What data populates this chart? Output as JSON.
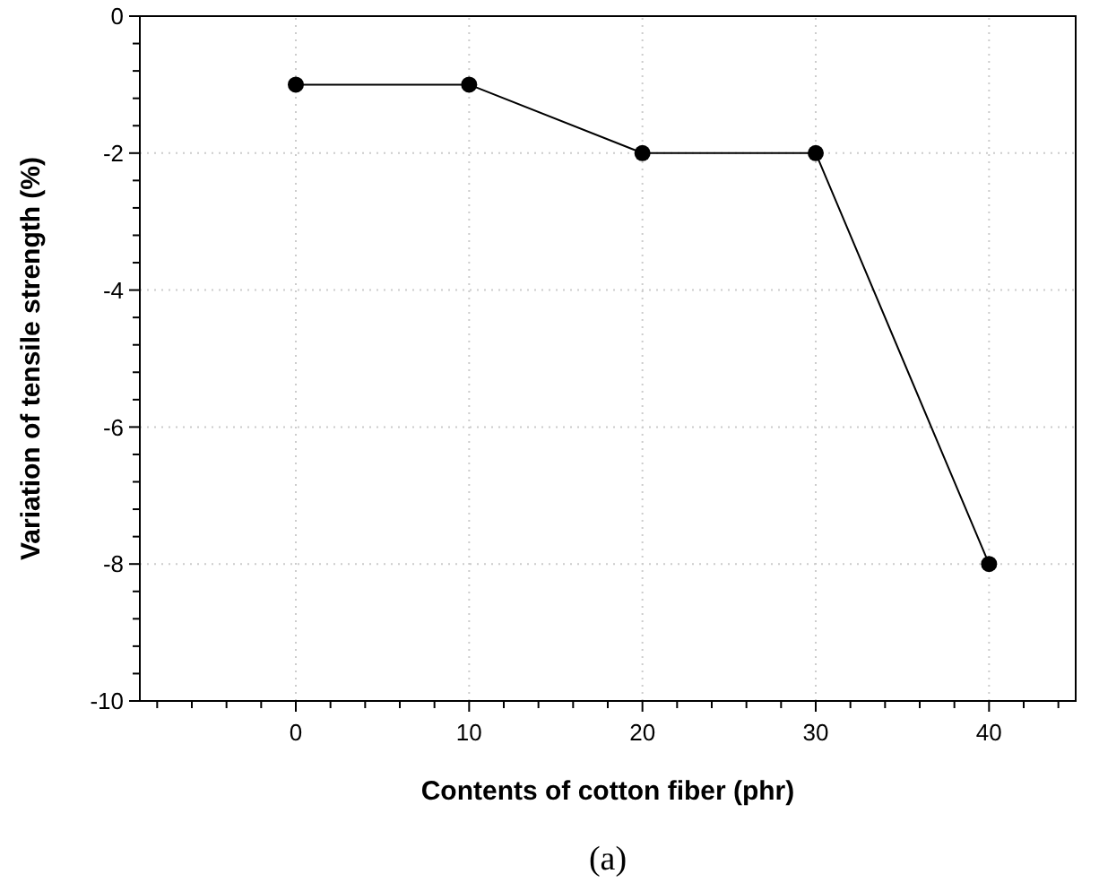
{
  "chart_data": {
    "type": "line",
    "xlabel": "Contents of cotton fiber (phr)",
    "ylabel": "Variation of tensile strength (%)",
    "annotations": [
      "(a)"
    ],
    "x": [
      0,
      10,
      20,
      30,
      40
    ],
    "series": [
      {
        "color": "#000000",
        "values": [
          -1,
          -1,
          -2,
          -2,
          -8
        ]
      }
    ],
    "xlim": [
      -9,
      45
    ],
    "ylim": [
      -10,
      0
    ],
    "xticks": [
      {
        "value": -8,
        "label": null
      },
      {
        "value": -6,
        "label": null
      },
      {
        "value": -4,
        "label": null
      },
      {
        "value": -2,
        "label": null
      },
      0,
      {
        "value": 2,
        "label": null
      },
      {
        "value": 4,
        "label": null
      },
      {
        "value": 6,
        "label": null
      },
      {
        "value": 8,
        "label": null
      },
      10,
      {
        "value": 12,
        "label": null
      },
      {
        "value": 14,
        "label": null
      },
      {
        "value": 16,
        "label": null
      },
      {
        "value": 18,
        "label": null
      },
      20,
      {
        "value": 22,
        "label": null
      },
      {
        "value": 24,
        "label": null
      },
      {
        "value": 26,
        "label": null
      },
      {
        "value": 28,
        "label": null
      },
      30,
      {
        "value": 32,
        "label": null
      },
      {
        "value": 34,
        "label": null
      },
      {
        "value": 36,
        "label": null
      },
      {
        "value": 38,
        "label": null
      },
      40,
      {
        "value": 42,
        "label": null
      },
      {
        "value": 44,
        "label": null
      }
    ],
    "yticks": [
      -10,
      {
        "value": -9.6,
        "label": null
      },
      {
        "value": -9.2,
        "label": null
      },
      {
        "value": -8.8,
        "label": null
      },
      {
        "value": -8.4,
        "label": null
      },
      -8,
      {
        "value": -7.6,
        "label": null
      },
      {
        "value": -7.2,
        "label": null
      },
      {
        "value": -6.8,
        "label": null
      },
      {
        "value": -6.4,
        "label": null
      },
      -6,
      {
        "value": -5.6,
        "label": null
      },
      {
        "value": -5.2,
        "label": null
      },
      {
        "value": -4.8,
        "label": null
      },
      {
        "value": -4.4,
        "label": null
      },
      -4,
      {
        "value": -3.6,
        "label": null
      },
      {
        "value": -3.2,
        "label": null
      },
      {
        "value": -2.8,
        "label": null
      },
      {
        "value": -2.4,
        "label": null
      },
      -2,
      {
        "value": -1.6,
        "label": null
      },
      {
        "value": -1.2,
        "label": null
      },
      {
        "value": -0.8,
        "label": null
      },
      {
        "value": -0.4,
        "label": null
      },
      0
    ],
    "grid": true,
    "marker": "circle",
    "line_style": "solid"
  }
}
